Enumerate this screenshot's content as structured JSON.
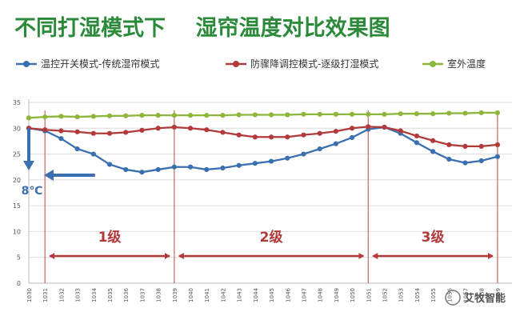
{
  "chart_data": {
    "type": "line",
    "title": "不同打湿模式下    湿帘温度对比效果图",
    "xlabel": "",
    "ylabel": "",
    "ylim": [
      0,
      35
    ],
    "yticks": [
      0,
      5,
      10,
      15,
      20,
      25,
      30,
      35
    ],
    "grid": true,
    "legend_position": "top",
    "categories": [
      "1030",
      "1031",
      "1032",
      "1033",
      "1034",
      "1035",
      "1036",
      "1037",
      "1038",
      "1039",
      "1040",
      "1041",
      "1042",
      "1043",
      "1044",
      "1045",
      "1046",
      "1047",
      "1048",
      "1049",
      "1050",
      "1051",
      "1052",
      "1053",
      "1054",
      "1055",
      "1056",
      "1057",
      "1058",
      "1059"
    ],
    "series": [
      {
        "name": "温控开关模式-传统湿帘模式",
        "color": "#3a6fb0",
        "values": [
          30,
          29.5,
          28,
          26,
          25,
          23,
          22,
          21.5,
          22,
          22.5,
          22.5,
          22,
          22.3,
          22.8,
          23.2,
          23.6,
          24.2,
          25,
          26,
          27,
          28.2,
          29.8,
          30.2,
          29,
          27.2,
          25.5,
          24,
          23.3,
          23.7,
          24.5
        ]
      },
      {
        "name": "防骤降调控模式-逐级打湿模式",
        "color": "#b23a3a",
        "values": [
          30,
          29.7,
          29.5,
          29.3,
          29,
          29,
          29.2,
          29.6,
          30,
          30.2,
          30,
          29.7,
          29.2,
          28.7,
          28.3,
          28.3,
          28.3,
          28.7,
          29,
          29.4,
          30,
          30.3,
          30.2,
          29.5,
          28.5,
          27.6,
          26.8,
          26.5,
          26.5,
          26.8
        ]
      },
      {
        "name": "室外温度",
        "color": "#8db63a",
        "values": [
          32,
          32.2,
          32.3,
          32.2,
          32.3,
          32.4,
          32.4,
          32.5,
          32.5,
          32.5,
          32.5,
          32.5,
          32.5,
          32.6,
          32.6,
          32.6,
          32.6,
          32.7,
          32.7,
          32.7,
          32.7,
          32.7,
          32.7,
          32.8,
          32.8,
          32.8,
          32.9,
          32.9,
          33,
          33
        ]
      }
    ],
    "vlines": [
      "1031",
      "1039",
      "1051",
      "1059"
    ],
    "levels": [
      {
        "label": "1级",
        "from": "1031",
        "to": "1039"
      },
      {
        "label": "2级",
        "from": "1039",
        "to": "1051"
      },
      {
        "label": "3级",
        "from": "1051",
        "to": "1059"
      }
    ],
    "annotation": {
      "label": "8℃",
      "x": "1030",
      "from_y": 30,
      "to_y": 22
    },
    "watermark": "艾牧智能"
  }
}
